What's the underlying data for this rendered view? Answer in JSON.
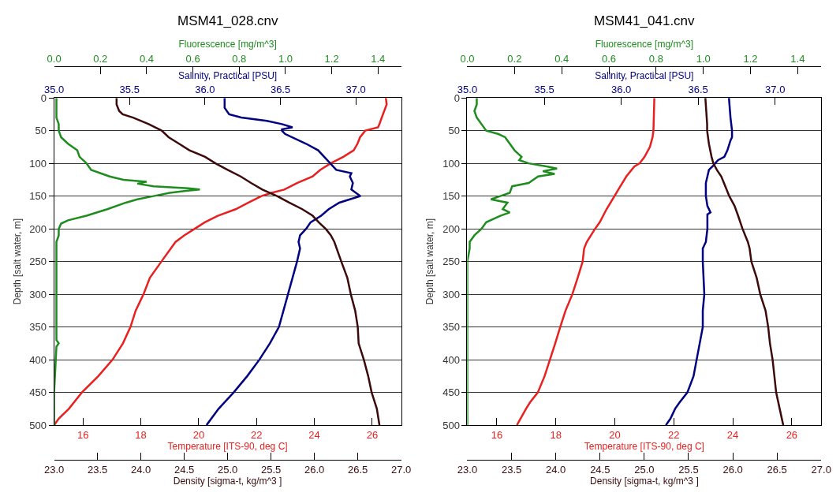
{
  "chart_data": [
    {
      "type": "line",
      "title": "MSM41_028.cnv",
      "ylabel": "Depth [salt water, m]",
      "ylim": [
        500,
        0
      ],
      "yticks": [
        0,
        50,
        100,
        150,
        200,
        250,
        300,
        350,
        400,
        450,
        500
      ],
      "grid": "y",
      "xlabel": "Temperature [ITS-90, deg C]",
      "xlim": [
        15,
        27
      ],
      "xticks": [
        16,
        18,
        20,
        22,
        24,
        26
      ],
      "x2label": "Salinity, Practical [PSU]",
      "x2lim": [
        35,
        37.3
      ],
      "x2ticks": [
        {
          "value": 35,
          "label": "35.0"
        },
        {
          "value": 35.5,
          "label": "35.5"
        },
        {
          "value": 36,
          "label": "36.0"
        },
        {
          "value": 36.5,
          "label": "36.5"
        },
        {
          "value": 37,
          "label": "37.0"
        }
      ],
      "series": [
        {
          "color": "#000080",
          "axis": "x2",
          "x": [
            36.13,
            36.13,
            36.16,
            36.24,
            36.41,
            36.51,
            36.58,
            36.51,
            36.51,
            36.53,
            36.67,
            36.75,
            36.79,
            36.83,
            36.87,
            36.97,
            36.96,
            36.98,
            36.97,
            37.03,
            36.96,
            36.89,
            36.82,
            36.77,
            36.7,
            36.67,
            36.63,
            36.62,
            36.63,
            36.61,
            36.58,
            36.55,
            36.52,
            36.49,
            36.43,
            36.36,
            36.28,
            36.19,
            36.09,
            36.01
          ],
          "values": [
            0,
            15,
            25,
            30,
            35,
            40,
            45,
            48,
            50,
            55,
            70,
            80,
            90,
            100,
            110,
            115,
            120,
            130,
            140,
            150,
            155,
            160,
            170,
            180,
            190,
            200,
            210,
            220,
            230,
            250,
            275,
            300,
            325,
            350,
            375,
            400,
            425,
            450,
            475,
            500
          ]
        },
        {
          "color": "#e82020",
          "x": [
            26.47,
            26.5,
            26.33,
            26.25,
            26.2,
            25.76,
            25.58,
            25.49,
            25.36,
            25.0,
            24.56,
            24.2,
            23.94,
            23.4,
            22.96,
            22.52,
            22.17,
            21.72,
            21.28,
            20.66,
            20.21,
            19.86,
            19.5,
            19.2,
            18.71,
            18.31,
            18.09,
            17.82,
            17.64,
            17.38,
            17.02,
            16.53,
            15.96,
            15.51,
            15.16,
            15.0
          ],
          "values": [
            0,
            10,
            30,
            40,
            45,
            50,
            60,
            70,
            80,
            90,
            100,
            110,
            120,
            130,
            140,
            145,
            150,
            160,
            170,
            180,
            190,
            200,
            210,
            220,
            250,
            275,
            300,
            325,
            350,
            375,
            400,
            425,
            450,
            475,
            490,
            500
          ]
        }
      ]
    },
    {
      "type": "line",
      "tick_labels": "x",
      "ylim": [
        500,
        0
      ],
      "xlabel": "Density [sigma-t, kg/m^3 ]",
      "xlim": [
        23,
        27
      ],
      "xticks": [
        {
          "value": 23,
          "label": "23.0"
        },
        {
          "value": 23.5,
          "label": "23.5"
        },
        {
          "value": 24,
          "label": "24.0"
        },
        {
          "value": 24.5,
          "label": "24.5"
        },
        {
          "value": 25,
          "label": "25.0"
        },
        {
          "value": 25.5,
          "label": "25.5"
        },
        {
          "value": 26,
          "label": "26.0"
        },
        {
          "value": 26.5,
          "label": "26.5"
        },
        {
          "value": 27,
          "label": "27.0"
        }
      ],
      "x2label": "Fluorescence [mg/m^3]",
      "x2lim": [
        0,
        1.5
      ],
      "x2ticks": [
        {
          "value": 0,
          "label": "0.0"
        },
        0.2,
        0.4,
        0.6,
        0.8,
        {
          "value": 1,
          "label": "1.0"
        },
        1.2,
        1.4
      ],
      "series": [
        {
          "color": "#1e8c1e",
          "axis": "x2",
          "x": [
            0.01,
            0.01,
            0.01,
            0.01,
            0.02,
            0.02,
            0.03,
            0.06,
            0.1,
            0.11,
            0.14,
            0.16,
            0.24,
            0.3,
            0.4,
            0.36,
            0.43,
            0.58,
            0.63,
            0.57,
            0.5,
            0.43,
            0.36,
            0.31,
            0.23,
            0.14,
            0.06,
            0.03,
            0.02,
            0.02,
            0.01,
            0.01,
            0.01,
            0.01,
            0.02,
            0.01,
            0.0,
            0.0
          ],
          "values": [
            0,
            10,
            20,
            30,
            40,
            50,
            60,
            70,
            80,
            90,
            100,
            110,
            120,
            125,
            128,
            131,
            135,
            138,
            140,
            142,
            145,
            150,
            155,
            160,
            170,
            180,
            187,
            192,
            200,
            210,
            220,
            240,
            300,
            370,
            375,
            380,
            450,
            500
          ]
        },
        {
          "color": "#3c0a0a",
          "x": [
            23.72,
            23.72,
            23.75,
            23.79,
            23.91,
            24.09,
            24.24,
            24.32,
            24.44,
            24.56,
            24.74,
            24.86,
            25.0,
            25.15,
            25.27,
            25.4,
            25.57,
            25.71,
            25.86,
            25.98,
            26.05,
            26.13,
            26.19,
            26.23,
            26.31,
            26.38,
            26.42,
            26.47,
            26.5,
            26.51,
            26.57,
            26.62,
            26.66,
            26.72,
            26.75
          ],
          "values": [
            0,
            10,
            20,
            25,
            30,
            40,
            50,
            60,
            70,
            80,
            90,
            100,
            110,
            120,
            130,
            140,
            150,
            160,
            170,
            180,
            190,
            200,
            210,
            220,
            250,
            275,
            300,
            325,
            350,
            375,
            400,
            425,
            450,
            475,
            500
          ]
        }
      ]
    },
    {
      "type": "line",
      "title": "MSM41_041.cnv",
      "ylabel": "Depth [salt water, m]",
      "ylim": [
        500,
        0
      ],
      "yticks": [
        0,
        50,
        100,
        150,
        200,
        250,
        300,
        350,
        400,
        450,
        500
      ],
      "grid": "y",
      "xlabel": "Temperature [ITS-90, deg C]",
      "xlim": [
        15,
        27
      ],
      "xticks": [
        16,
        18,
        20,
        22,
        24,
        26
      ],
      "x2label": "Salinity, Practical [PSU]",
      "x2lim": [
        35,
        37.3
      ],
      "x2ticks": [
        {
          "value": 35,
          "label": "35.0"
        },
        {
          "value": 35.5,
          "label": "35.5"
        },
        {
          "value": 36,
          "label": "36.0"
        },
        {
          "value": 36.5,
          "label": "36.5"
        },
        {
          "value": 37,
          "label": "37.0"
        }
      ],
      "series": [
        {
          "color": "#e82020",
          "x": [
            21.34,
            21.31,
            21.28,
            21.19,
            21.01,
            20.84,
            20.66,
            20.39,
            20.12,
            19.99,
            19.72,
            19.49,
            19.33,
            19.05,
            18.96,
            18.91,
            18.74,
            18.56,
            18.33,
            18.15,
            17.98,
            17.8,
            17.62,
            17.39,
            17.13,
            16.99,
            16.68
          ],
          "values": [
            0,
            50,
            60,
            75,
            90,
            100,
            105,
            120,
            140,
            150,
            170,
            190,
            200,
            220,
            230,
            250,
            275,
            300,
            325,
            350,
            375,
            400,
            425,
            450,
            465,
            475,
            500
          ]
        },
        {
          "color": "#000080",
          "axis": "x2",
          "x": [
            36.7,
            36.71,
            36.72,
            36.72,
            36.71,
            36.69,
            36.67,
            36.63,
            36.61,
            36.6,
            36.57,
            36.56,
            36.55,
            36.55,
            36.56,
            36.58,
            36.56,
            36.56,
            36.56,
            36.55,
            36.53,
            36.53,
            36.54,
            36.53,
            36.53,
            36.51,
            36.49,
            36.47,
            36.43,
            36.38,
            36.35,
            36.32,
            36.29
          ],
          "values": [
            0,
            30,
            50,
            60,
            65,
            80,
            90,
            95,
            100,
            103,
            110,
            120,
            130,
            150,
            165,
            175,
            178,
            190,
            200,
            220,
            230,
            250,
            300,
            325,
            350,
            375,
            400,
            425,
            450,
            465,
            475,
            490,
            500
          ]
        }
      ]
    },
    {
      "type": "line",
      "tick_labels": "x",
      "ylim": [
        500,
        0
      ],
      "xlabel": "Density [sigma-t, kg/m^3 ]",
      "xlim": [
        23,
        27
      ],
      "xticks": [
        {
          "value": 23,
          "label": "23.0"
        },
        {
          "value": 23.5,
          "label": "23.5"
        },
        {
          "value": 24,
          "label": "24.0"
        },
        {
          "value": 24.5,
          "label": "24.5"
        },
        {
          "value": 25,
          "label": "25.0"
        },
        {
          "value": 25.5,
          "label": "25.5"
        },
        {
          "value": 26,
          "label": "26.0"
        },
        {
          "value": 26.5,
          "label": "26.5"
        },
        {
          "value": 27,
          "label": "27.0"
        }
      ],
      "x2label": "Fluorescence [mg/m^3]",
      "x2lim": [
        0,
        1.5
      ],
      "x2ticks": [
        {
          "value": 0,
          "label": "0.0"
        },
        0.2,
        0.4,
        0.6,
        0.8,
        {
          "value": 1,
          "label": "1.0"
        },
        1.2,
        1.4
      ],
      "series": [
        {
          "color": "#1e8c1e",
          "axis": "x2",
          "x": [
            0.04,
            0.04,
            0.03,
            0.04,
            0.06,
            0.08,
            0.13,
            0.16,
            0.18,
            0.2,
            0.23,
            0.22,
            0.26,
            0.34,
            0.38,
            0.32,
            0.37,
            0.3,
            0.26,
            0.19,
            0.18,
            0.14,
            0.1,
            0.17,
            0.15,
            0.18,
            0.14,
            0.08,
            0.06,
            0.03,
            0.01,
            0.01,
            0.0,
            0.0,
            0.0
          ],
          "values": [
            0,
            10,
            20,
            30,
            40,
            50,
            55,
            60,
            70,
            80,
            90,
            95,
            100,
            105,
            108,
            112,
            116,
            120,
            130,
            135,
            145,
            150,
            155,
            160,
            170,
            175,
            180,
            190,
            200,
            210,
            220,
            230,
            250,
            350,
            500
          ]
        },
        {
          "color": "#3c0a0a",
          "x": [
            25.69,
            25.7,
            25.71,
            25.71,
            25.73,
            25.76,
            25.78,
            25.82,
            25.87,
            25.9,
            25.96,
            26.02,
            26.06,
            26.11,
            26.17,
            26.19,
            26.21,
            26.27,
            26.31,
            26.37,
            26.4,
            26.42,
            26.45,
            26.47,
            26.49,
            26.53,
            26.57
          ],
          "values": [
            0,
            20,
            40,
            50,
            70,
            90,
            100,
            110,
            120,
            130,
            150,
            165,
            180,
            200,
            220,
            230,
            250,
            275,
            300,
            325,
            350,
            375,
            400,
            425,
            450,
            475,
            500
          ]
        }
      ]
    }
  ]
}
